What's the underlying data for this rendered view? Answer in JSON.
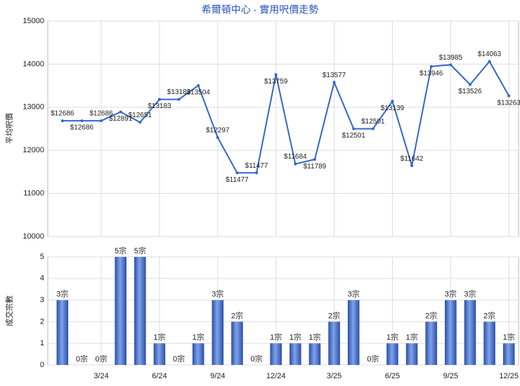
{
  "chart_data": [
    {
      "type": "line",
      "title": "希爾頓中心 - 實用呎價走勢",
      "y_label": "平均呎價",
      "color": "#3366cc",
      "grid": true,
      "categories": [
        null,
        null,
        "3/24",
        null,
        null,
        "6/24",
        null,
        null,
        "9/24",
        null,
        null,
        "12/24",
        null,
        null,
        "3/25",
        null,
        null,
        "6/25",
        null,
        null,
        "9/25",
        null,
        null,
        "12/25"
      ],
      "values": [
        12686,
        12686,
        12686,
        12891,
        12651,
        13183,
        13183,
        13504,
        12297,
        11477,
        11477,
        13759,
        11684,
        11789,
        13577,
        12501,
        12501,
        13139,
        11642,
        13946,
        13985,
        13526,
        14063,
        13263
      ],
      "value_labels": [
        "$12686",
        "$12686",
        "$12686",
        "$12891",
        "$12651",
        "$13183",
        "$13183",
        "$13504",
        "$12297",
        "$11477",
        "$11477",
        "$13759",
        "$11684",
        "$11789",
        "$13577",
        "$12501",
        "$12501",
        "$13139",
        "$11642",
        "$13946",
        "$13985",
        "$13526",
        "$14063",
        "$13263"
      ],
      "ylim": [
        10000,
        15000
      ],
      "yticks": [
        10000,
        11000,
        12000,
        13000,
        14000,
        15000
      ]
    },
    {
      "type": "bar",
      "y_label": "成交宗數",
      "color": "#3a64c4",
      "grid": true,
      "categories": [
        null,
        null,
        "3/24",
        null,
        null,
        "6/24",
        null,
        null,
        "9/24",
        null,
        null,
        "12/24",
        null,
        null,
        "3/25",
        null,
        null,
        "6/25",
        null,
        null,
        "9/25",
        null,
        null,
        "12/25"
      ],
      "values": [
        3,
        0,
        0,
        5,
        5,
        1,
        0,
        1,
        3,
        2,
        0,
        1,
        1,
        1,
        2,
        3,
        0,
        1,
        1,
        2,
        3,
        3,
        2,
        1
      ],
      "value_labels": [
        "3宗",
        "0宗",
        "0宗",
        "5宗",
        "5宗",
        "1宗",
        "0宗",
        "1宗",
        "3宗",
        "2宗",
        "0宗",
        "1宗",
        "1宗",
        "1宗",
        "2宗",
        "3宗",
        "0宗",
        "1宗",
        "1宗",
        "2宗",
        "3宗",
        "3宗",
        "2宗",
        "1宗"
      ],
      "ylim": [
        0,
        5
      ],
      "yticks": [
        0,
        1,
        2,
        3,
        4,
        5
      ]
    }
  ]
}
